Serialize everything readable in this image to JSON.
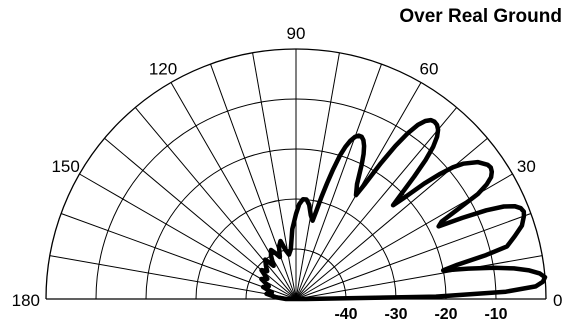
{
  "chart_data": {
    "type": "polar-elevation-pattern",
    "title": "Over Real Ground",
    "angle_unit": "degrees",
    "angle_ticks": [
      "0",
      "30",
      "60",
      "90",
      "120",
      "150",
      "180"
    ],
    "radial_unit": "dB",
    "radial_ticks": [
      -40,
      -30,
      -20,
      -10
    ],
    "radial_tick_labels": [
      "-40",
      "-30",
      "-20",
      "-10"
    ],
    "radial_range": [
      -50,
      0
    ],
    "grid": true,
    "line_color": "#000000",
    "series": [
      {
        "angles_deg": [
          0,
          1,
          2,
          3,
          4,
          5,
          6,
          7,
          8,
          9,
          10,
          11,
          12,
          13,
          14,
          16,
          18,
          20,
          21,
          22,
          23,
          24,
          25,
          26,
          27,
          28,
          29,
          30,
          31,
          32,
          33,
          34,
          35,
          37,
          39,
          40,
          41,
          42,
          43,
          44,
          45,
          46,
          47,
          48,
          49,
          50,
          51,
          52,
          53,
          54,
          55,
          56,
          57,
          58,
          59,
          60,
          62,
          64,
          65,
          66,
          67,
          68,
          69,
          70,
          71,
          72,
          73,
          74,
          75,
          76,
          77,
          78,
          80,
          82,
          84,
          86,
          88,
          90,
          93,
          96,
          99,
          102,
          105,
          108,
          111,
          114,
          117,
          120,
          124,
          128,
          132,
          136,
          140,
          145,
          150,
          155,
          160,
          165,
          170,
          175,
          180
        ],
        "gain_db": [
          -48,
          -22,
          -8,
          -2,
          -0.5,
          0,
          -1,
          -3,
          -6,
          -10,
          -15,
          -20,
          -17,
          -11,
          -6.5,
          -4.5,
          -2.5,
          -1.5,
          -1.2,
          -1.5,
          -2.5,
          -4.5,
          -8,
          -13,
          -18,
          -17,
          -13,
          -8,
          -5.5,
          -4,
          -3.3,
          -3,
          -3.2,
          -4.5,
          -7,
          -9,
          -12,
          -15.5,
          -20,
          -23,
          -20,
          -16,
          -12,
          -9,
          -7,
          -5.8,
          -5.2,
          -5,
          -5.2,
          -6,
          -7.5,
          -10,
          -13.5,
          -18,
          -23,
          -26,
          -24,
          -20,
          -18,
          -16.5,
          -15.5,
          -15,
          -15,
          -15.5,
          -16.5,
          -18,
          -20,
          -23,
          -26,
          -29,
          -32,
          -34,
          -33,
          -31,
          -30,
          -30,
          -31,
          -33,
          -36,
          -40,
          -41,
          -40,
          -38,
          -39,
          -41,
          -40,
          -39,
          -40,
          -42,
          -40,
          -41,
          -42,
          -41,
          -43,
          -42,
          -44,
          -43,
          -45,
          -44,
          -46,
          -48
        ]
      }
    ]
  }
}
